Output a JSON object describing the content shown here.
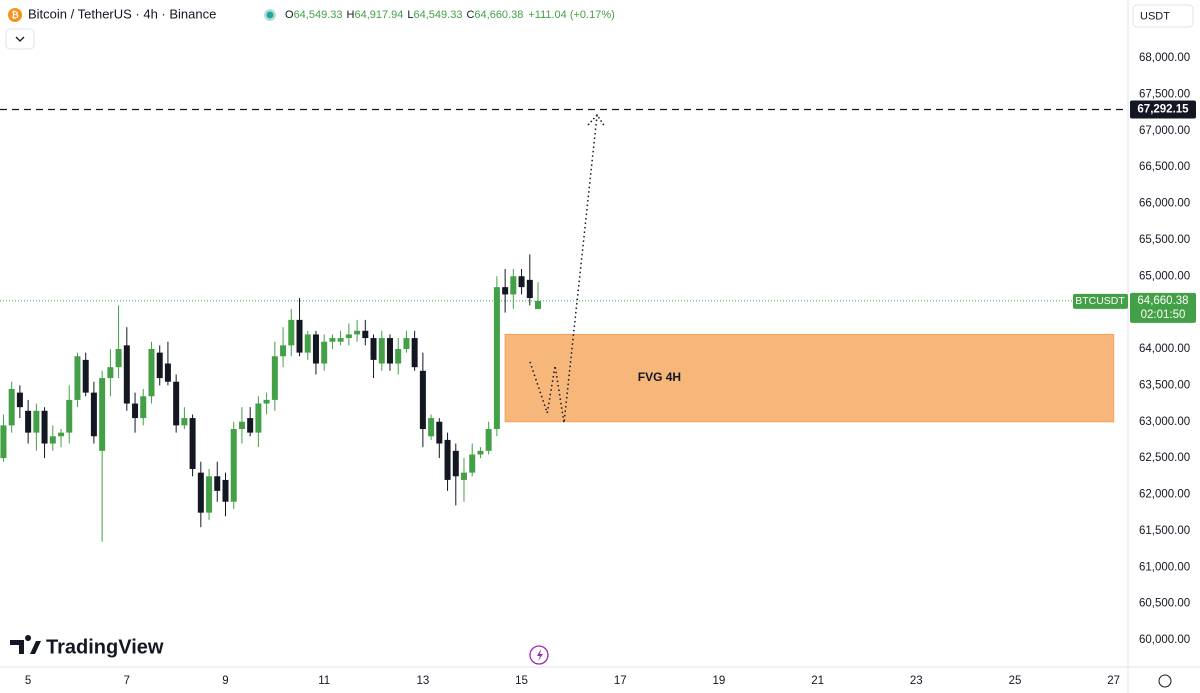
{
  "chart_data": {
    "type": "candlestick",
    "title": "Bitcoin / TetherUS · 4h · Binance",
    "ohlc_header": [
      {
        "letter": "O",
        "value": "64,549.33"
      },
      {
        "letter": "H",
        "value": "64,917.94"
      },
      {
        "letter": "L",
        "value": "64,549.33"
      },
      {
        "letter": "C",
        "value": "64,660.38"
      }
    ],
    "change": "+111.04 (+0.17%)",
    "currency": "USDT",
    "brand": "TradingView",
    "x": [
      4.5,
      4.667,
      4.833,
      5,
      5.167,
      5.333,
      5.5,
      5.667,
      5.833,
      6,
      6.167,
      6.333,
      6.5,
      6.667,
      6.833,
      7,
      7.167,
      7.333,
      7.5,
      7.667,
      7.833,
      8,
      8.167,
      8.333,
      8.5,
      8.667,
      8.833,
      9,
      9.167,
      9.333,
      9.5,
      9.667,
      9.833,
      10,
      10.167,
      10.333,
      10.5,
      10.667,
      10.833,
      11,
      11.167,
      11.333,
      11.5,
      11.667,
      11.833,
      12,
      12.167,
      12.333,
      12.5,
      12.667,
      12.833,
      13,
      13.167,
      13.333,
      13.5,
      13.667,
      13.833,
      14,
      14.167,
      14.333,
      14.5,
      14.667,
      14.833,
      15,
      15.167,
      15.333
    ],
    "open": [
      62500,
      62950,
      63400,
      63150,
      62850,
      63150,
      62700,
      62800,
      62850,
      63300,
      63850,
      63400,
      62600,
      63600,
      63750,
      64050,
      63250,
      63050,
      63350,
      63950,
      63800,
      63550,
      62950,
      63050,
      62300,
      61750,
      62250,
      62200,
      61900,
      62900,
      63050,
      62850,
      63250,
      63300,
      63900,
      64050,
      64400,
      63950,
      64200,
      63800,
      64100,
      64100,
      64150,
      64200,
      64250,
      64150,
      63800,
      64150,
      63800,
      64000,
      64150,
      63700,
      62800,
      63000,
      62750,
      62600,
      62200,
      62300,
      62550,
      62600,
      62900,
      64850,
      64750,
      65000,
      64950,
      64549.33
    ],
    "high": [
      63100,
      63550,
      63500,
      63300,
      63250,
      63200,
      62950,
      62900,
      63500,
      63950,
      63950,
      63550,
      63700,
      64000,
      64600,
      64300,
      63400,
      63450,
      64100,
      64050,
      64100,
      63650,
      63200,
      63100,
      62450,
      62350,
      62450,
      62300,
      63000,
      63200,
      63200,
      63350,
      63400,
      64100,
      64300,
      64550,
      64700,
      64250,
      64250,
      64200,
      64200,
      64250,
      64350,
      64400,
      64400,
      64200,
      64250,
      64200,
      64150,
      64250,
      64250,
      63950,
      63100,
      63050,
      62850,
      62700,
      62500,
      62700,
      62650,
      63000,
      65000,
      65100,
      65100,
      65100,
      65300,
      64917.94
    ],
    "low": [
      62450,
      62850,
      63050,
      62700,
      62600,
      62500,
      62600,
      62650,
      62700,
      63200,
      63350,
      62700,
      61350,
      63350,
      63600,
      63150,
      62850,
      62950,
      63250,
      63500,
      63500,
      62850,
      62900,
      62250,
      61550,
      61650,
      61900,
      61700,
      61800,
      62700,
      62800,
      62650,
      63100,
      63150,
      63750,
      63900,
      63900,
      63850,
      63650,
      63700,
      64000,
      64050,
      64050,
      64100,
      64050,
      63600,
      63700,
      63700,
      63650,
      63950,
      63700,
      62650,
      62750,
      62500,
      62050,
      61850,
      61900,
      62250,
      62500,
      62550,
      62800,
      64500,
      64550,
      64750,
      64600,
      64549.33
    ],
    "close": [
      62950,
      63450,
      63200,
      62850,
      63150,
      62700,
      62800,
      62850,
      63300,
      63900,
      63400,
      62800,
      63600,
      63750,
      64000,
      63250,
      63050,
      63350,
      64000,
      63600,
      63550,
      62950,
      63050,
      62350,
      61750,
      62250,
      62050,
      61900,
      62900,
      63000,
      62850,
      63250,
      63300,
      63900,
      64050,
      64400,
      63950,
      64200,
      63800,
      64100,
      64150,
      64150,
      64200,
      64250,
      64150,
      63850,
      64150,
      63800,
      64000,
      64150,
      63750,
      62900,
      63050,
      62700,
      62200,
      62250,
      62300,
      62550,
      62600,
      62900,
      64850,
      64750,
      65000,
      64850,
      64700,
      64660.38
    ],
    "up_color": "#43a047",
    "down_color": "#131722",
    "xlim": [
      4.43,
      27.29
    ],
    "xticks": [
      5,
      7,
      9,
      11,
      13,
      15,
      17,
      19,
      21,
      23,
      25,
      27
    ],
    "ylim": [
      59656,
      68797
    ],
    "yticks": [
      {
        "value": 60000,
        "label": "60,000.00"
      },
      {
        "value": 60500,
        "label": "60,500.00"
      },
      {
        "value": 61000,
        "label": "61,000.00"
      },
      {
        "value": 61500,
        "label": "61,500.00"
      },
      {
        "value": 62000,
        "label": "62,000.00"
      },
      {
        "value": 62500,
        "label": "62,500.00"
      },
      {
        "value": 63000,
        "label": "63,000.00"
      },
      {
        "value": 63500,
        "label": "63,500.00"
      },
      {
        "value": 64000,
        "label": "64,000.00"
      },
      {
        "value": 64500,
        "label": "64,500.00"
      },
      {
        "value": 65000,
        "label": "65,000.00"
      },
      {
        "value": 65500,
        "label": "65,500.00"
      },
      {
        "value": 66000,
        "label": "66,000.00"
      },
      {
        "value": 66500,
        "label": "66,500.00"
      },
      {
        "value": 67000,
        "label": "67,000.00"
      },
      {
        "value": 67500,
        "label": "67,500.00"
      },
      {
        "value": 68000,
        "label": "68,000.00"
      }
    ],
    "grid": false,
    "symbol_label": "BTCUSDT",
    "last_price_label": "64,660.38",
    "countdown": "02:01:50",
    "level": {
      "value": 67292.15,
      "label": "67,292.15"
    },
    "zone": {
      "x": [
        14.667,
        27
      ],
      "y": [
        63000,
        64200
      ],
      "label": "FVG 4H",
      "color": "#f7b77b"
    },
    "projection": {
      "x": [
        15.17,
        15.52,
        15.68,
        15.86,
        16.53
      ],
      "y": [
        63823,
        63120,
        63770,
        62983,
        67216
      ]
    }
  }
}
